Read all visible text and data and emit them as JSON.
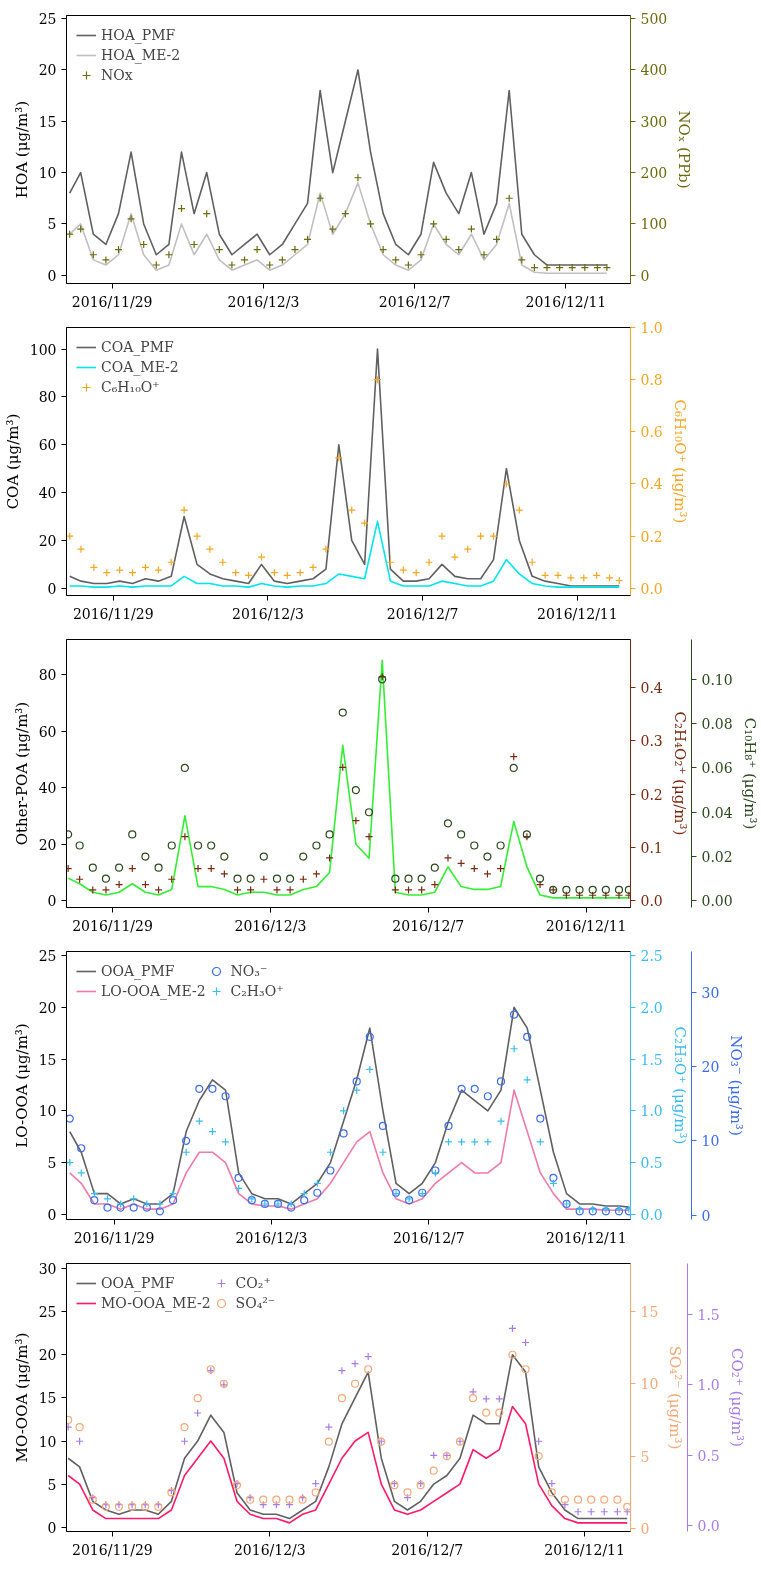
{
  "chart_data": [
    {
      "type": "line",
      "legend": "top left",
      "grid": false,
      "ylabel": "HOA (μg/m³)",
      "y2label": "NOₓ (PPb)",
      "x": [
        "2016-11-27T21:00",
        "2016-11-28T04:00",
        "2016-11-28T12:00",
        "2016-11-28T20:00",
        "2016-11-29T04:00",
        "2016-11-29T12:00",
        "2016-11-29T20:00",
        "2016-11-30T04:00",
        "2016-11-30T12:00",
        "2016-11-30T20:00",
        "2016-12-01T04:00",
        "2016-12-01T12:00",
        "2016-12-01T20:00",
        "2016-12-02T04:00",
        "2016-12-02T12:00",
        "2016-12-02T20:00",
        "2016-12-03T04:00",
        "2016-12-03T12:00",
        "2016-12-03T20:00",
        "2016-12-04T04:00",
        "2016-12-04T12:00",
        "2016-12-04T20:00",
        "2016-12-05T04:00",
        "2016-12-05T12:00",
        "2016-12-05T20:00",
        "2016-12-06T04:00",
        "2016-12-06T12:00",
        "2016-12-06T20:00",
        "2016-12-07T04:00",
        "2016-12-07T12:00",
        "2016-12-07T20:00",
        "2016-12-08T04:00",
        "2016-12-08T12:00",
        "2016-12-08T20:00",
        "2016-12-09T04:00",
        "2016-12-09T12:00",
        "2016-12-09T20:00",
        "2016-12-10T04:00",
        "2016-12-10T12:00",
        "2016-12-10T20:00",
        "2016-12-11T04:00",
        "2016-12-11T12:00",
        "2016-12-11T20:00",
        "2016-12-12T02:00"
      ],
      "xlim": [
        "2016-11-27T19:00",
        "2016-12-12T17:00"
      ],
      "xticks": [
        {
          "value": "2016-11-29",
          "label": "2016/11/29"
        },
        {
          "value": "2016-12-03",
          "label": "2016/12/3"
        },
        {
          "value": "2016-12-07",
          "label": "2016/12/7"
        },
        {
          "value": "2016-12-11",
          "label": "2016/12/11"
        }
      ],
      "ylim": [
        -0.8,
        25.3
      ],
      "yticks": [
        0,
        5,
        10,
        15,
        20,
        25
      ],
      "y2lim": [
        -16,
        506
      ],
      "y2ticks": [
        0,
        100,
        200,
        300,
        400,
        500
      ],
      "series": [
        {
          "name": "HOA_PMF",
          "color": "#606060",
          "values": [
            8,
            10,
            4,
            3,
            6,
            12,
            5,
            2,
            3,
            12,
            6,
            10,
            4,
            2,
            3,
            4,
            2,
            3,
            5,
            7,
            18,
            10,
            15,
            20,
            12,
            6,
            3,
            2,
            4,
            11,
            8,
            6,
            10,
            4,
            7,
            18,
            4,
            2,
            1,
            1,
            1,
            1,
            1,
            1
          ]
        },
        {
          "name": "HOA_ME-2",
          "color": "#c0c0c0",
          "values": [
            4,
            5,
            1.5,
            1,
            2,
            6,
            2,
            0.5,
            1,
            5,
            2,
            4,
            1.5,
            0.5,
            1,
            1.5,
            0.5,
            1,
            2,
            3,
            8,
            4,
            6,
            9,
            5,
            2,
            1,
            0.5,
            1.5,
            5,
            3,
            2,
            4,
            1.5,
            3,
            7,
            1,
            0.3,
            0.2,
            0.2,
            0.2,
            0.2,
            0.2,
            0.2
          ]
        },
        {
          "name": "NOx",
          "color": "#6b6b10",
          "type": "scatter",
          "marker": "cross",
          "axis": "y2",
          "values": [
            80,
            90,
            40,
            30,
            50,
            110,
            60,
            20,
            40,
            130,
            60,
            120,
            50,
            20,
            30,
            50,
            20,
            30,
            50,
            70,
            150,
            90,
            120,
            190,
            100,
            50,
            30,
            20,
            40,
            100,
            70,
            50,
            90,
            40,
            70,
            150,
            30,
            15,
            15,
            15,
            15,
            15,
            15,
            15
          ]
        }
      ]
    },
    {
      "type": "line",
      "legend": "top left",
      "grid": false,
      "ylabel": "COA (μg/m³)",
      "y2label": "C₆H₁₀O⁺ (μg/m³)",
      "x": [
        "2016-11-27T21:00",
        "2016-11-28T04:00",
        "2016-11-28T12:00",
        "2016-11-28T20:00",
        "2016-11-29T04:00",
        "2016-11-29T12:00",
        "2016-11-29T20:00",
        "2016-11-30T04:00",
        "2016-11-30T12:00",
        "2016-11-30T20:00",
        "2016-12-01T04:00",
        "2016-12-01T12:00",
        "2016-12-01T20:00",
        "2016-12-02T04:00",
        "2016-12-02T12:00",
        "2016-12-02T20:00",
        "2016-12-03T04:00",
        "2016-12-03T12:00",
        "2016-12-03T20:00",
        "2016-12-04T04:00",
        "2016-12-04T12:00",
        "2016-12-04T20:00",
        "2016-12-05T04:00",
        "2016-12-05T12:00",
        "2016-12-05T20:00",
        "2016-12-06T04:00",
        "2016-12-06T12:00",
        "2016-12-06T20:00",
        "2016-12-07T04:00",
        "2016-12-07T12:00",
        "2016-12-07T20:00",
        "2016-12-08T04:00",
        "2016-12-08T12:00",
        "2016-12-08T20:00",
        "2016-12-09T04:00",
        "2016-12-09T12:00",
        "2016-12-09T20:00",
        "2016-12-10T04:00",
        "2016-12-10T12:00",
        "2016-12-10T20:00",
        "2016-12-11T04:00",
        "2016-12-11T12:00",
        "2016-12-11T20:00",
        "2016-12-12T02:00"
      ],
      "xlim": [
        "2016-11-27T19:00",
        "2016-12-12T09:00"
      ],
      "xticks": [
        {
          "value": "2016-11-29",
          "label": "2016/11/29"
        },
        {
          "value": "2016-12-03",
          "label": "2016/12/3"
        },
        {
          "value": "2016-12-07",
          "label": "2016/12/7"
        },
        {
          "value": "2016-12-11",
          "label": "2016/12/11"
        }
      ],
      "ylim": [
        -3,
        109
      ],
      "yticks": [
        0,
        20,
        40,
        60,
        80,
        100
      ],
      "y2lim": [
        -0.0275,
        1.0
      ],
      "y2ticks": [
        {
          "value": 0,
          "label": "0.0"
        },
        0.2,
        0.4,
        0.6,
        0.8,
        {
          "value": 1,
          "label": "1.0"
        }
      ],
      "series": [
        {
          "name": "COA_PMF",
          "color": "#606060",
          "values": [
            5,
            3,
            2,
            2,
            3,
            2,
            4,
            3,
            5,
            30,
            10,
            6,
            4,
            3,
            2,
            10,
            3,
            2,
            3,
            4,
            8,
            60,
            20,
            10,
            100,
            8,
            3,
            3,
            4,
            10,
            5,
            4,
            4,
            12,
            50,
            20,
            5,
            3,
            2,
            1,
            1,
            1,
            1,
            1
          ]
        },
        {
          "name": "COA_ME-2",
          "color": "#00e5ee",
          "values": [
            1,
            1,
            0.5,
            0.5,
            1,
            0.5,
            1,
            1,
            1,
            5,
            2,
            2,
            1,
            1,
            0.5,
            2,
            1,
            0.5,
            1,
            1,
            2,
            6,
            5,
            4,
            28,
            3,
            1,
            1,
            1,
            3,
            2,
            1,
            1,
            3,
            12,
            6,
            2,
            1,
            0.5,
            0.5,
            0.5,
            0.5,
            0.5,
            0.5
          ]
        },
        {
          "name": "C₆H₁₀O⁺",
          "color": "#f5a623",
          "type": "scatter",
          "marker": "cross",
          "axis": "y2",
          "values": [
            0.2,
            0.15,
            0.08,
            0.06,
            0.07,
            0.06,
            0.08,
            0.07,
            0.1,
            0.3,
            0.2,
            0.15,
            0.1,
            0.06,
            0.05,
            0.12,
            0.06,
            0.05,
            0.06,
            0.08,
            0.15,
            0.5,
            0.3,
            0.25,
            0.8,
            0.1,
            0.07,
            0.06,
            0.1,
            0.2,
            0.12,
            0.15,
            0.2,
            0.2,
            0.4,
            0.3,
            0.1,
            0.05,
            0.05,
            0.04,
            0.04,
            0.05,
            0.04,
            0.03
          ]
        }
      ]
    },
    {
      "type": "line",
      "grid": false,
      "ylabel": "Other-POA (μg/m³)",
      "y2label": "C₂H₄O₂⁺ (μg/m³)",
      "y3label": "C₁₀H₈⁺ (μg/m³)",
      "x": [
        "2016-11-27T21:00",
        "2016-11-28T04:00",
        "2016-11-28T12:00",
        "2016-11-28T20:00",
        "2016-11-29T04:00",
        "2016-11-29T12:00",
        "2016-11-29T20:00",
        "2016-11-30T04:00",
        "2016-11-30T12:00",
        "2016-11-30T20:00",
        "2016-12-01T04:00",
        "2016-12-01T12:00",
        "2016-12-01T20:00",
        "2016-12-02T04:00",
        "2016-12-02T12:00",
        "2016-12-02T20:00",
        "2016-12-03T04:00",
        "2016-12-03T12:00",
        "2016-12-03T20:00",
        "2016-12-04T04:00",
        "2016-12-04T12:00",
        "2016-12-04T20:00",
        "2016-12-05T04:00",
        "2016-12-05T12:00",
        "2016-12-05T20:00",
        "2016-12-06T04:00",
        "2016-12-06T12:00",
        "2016-12-06T20:00",
        "2016-12-07T04:00",
        "2016-12-07T12:00",
        "2016-12-07T20:00",
        "2016-12-08T04:00",
        "2016-12-08T12:00",
        "2016-12-08T20:00",
        "2016-12-09T04:00",
        "2016-12-09T12:00",
        "2016-12-09T20:00",
        "2016-12-10T04:00",
        "2016-12-10T12:00",
        "2016-12-10T20:00",
        "2016-12-11T04:00",
        "2016-12-11T12:00",
        "2016-12-11T20:00",
        "2016-12-12T02:00"
      ],
      "xlim": [
        "2016-11-27T20:00",
        "2016-12-12T03:00"
      ],
      "xticks": [
        {
          "value": "2016-11-29",
          "label": "2016/11/29"
        },
        {
          "value": "2016-12-03",
          "label": "2016/12/3"
        },
        {
          "value": "2016-12-07",
          "label": "2016/12/7"
        },
        {
          "value": "2016-12-11",
          "label": "2016/12/11"
        }
      ],
      "ylim": [
        -2.4,
        92.4
      ],
      "yticks": [
        0,
        20,
        40,
        60,
        80
      ],
      "y2lim": [
        -0.013,
        0.49
      ],
      "y2ticks": [
        {
          "value": 0,
          "label": "0.0"
        },
        0.1,
        0.2,
        0.3,
        0.4
      ],
      "y3lim": [
        -0.003,
        0.118
      ],
      "y3ticks": [
        {
          "value": 0,
          "label": "0.00"
        },
        0.02,
        0.04,
        0.06,
        0.08,
        {
          "value": 0.1,
          "label": "0.10"
        }
      ],
      "series": [
        {
          "color": "#33ee33",
          "values": [
            8,
            6,
            3,
            2,
            3,
            6,
            3,
            2,
            4,
            30,
            5,
            5,
            4,
            2,
            3,
            3,
            2,
            2,
            4,
            5,
            10,
            55,
            20,
            15,
            85,
            3,
            2,
            2,
            3,
            12,
            5,
            4,
            4,
            5,
            28,
            12,
            2,
            1,
            1,
            1,
            1,
            1,
            1,
            1
          ]
        },
        {
          "color": "#7a2a10",
          "type": "scatter",
          "marker": "cross",
          "axis": "y2",
          "values": [
            0.06,
            0.04,
            0.02,
            0.02,
            0.03,
            0.06,
            0.03,
            0.02,
            0.04,
            0.12,
            0.06,
            0.06,
            0.05,
            0.02,
            0.02,
            0.04,
            0.02,
            0.02,
            0.04,
            0.05,
            0.08,
            0.25,
            0.15,
            0.12,
            0.42,
            0.02,
            0.02,
            0.02,
            0.03,
            0.08,
            0.07,
            0.06,
            0.05,
            0.06,
            0.27,
            0.12,
            0.03,
            0.02,
            0.01,
            0.01,
            0.01,
            0.01,
            0.01,
            0.01
          ]
        },
        {
          "color": "#2d4a1e",
          "type": "scatter",
          "marker": "circle",
          "axis": "y3",
          "values": [
            0.03,
            0.025,
            0.015,
            0.01,
            0.015,
            0.03,
            0.02,
            0.015,
            0.025,
            0.06,
            0.025,
            0.025,
            0.02,
            0.01,
            0.01,
            0.02,
            0.01,
            0.01,
            0.02,
            0.025,
            0.03,
            0.085,
            0.05,
            0.04,
            0.1,
            0.01,
            0.01,
            0.01,
            0.015,
            0.035,
            0.03,
            0.025,
            0.02,
            0.025,
            0.06,
            0.03,
            0.01,
            0.005,
            0.005,
            0.005,
            0.005,
            0.005,
            0.005,
            0.005
          ]
        }
      ]
    },
    {
      "type": "line",
      "legend": "top left",
      "grid": false,
      "ylabel": "LO-OOA (μg/m³)",
      "y2label": "C₂H₃O⁺ (μg/m³)",
      "y3label": "NO₃⁻ (μg/m³)",
      "x": [
        "2016-11-27T21:00",
        "2016-11-28T04:00",
        "2016-11-28T12:00",
        "2016-11-28T20:00",
        "2016-11-29T04:00",
        "2016-11-29T12:00",
        "2016-11-29T20:00",
        "2016-11-30T04:00",
        "2016-11-30T12:00",
        "2016-11-30T20:00",
        "2016-12-01T04:00",
        "2016-12-01T12:00",
        "2016-12-01T20:00",
        "2016-12-02T04:00",
        "2016-12-02T12:00",
        "2016-12-02T20:00",
        "2016-12-03T04:00",
        "2016-12-03T12:00",
        "2016-12-03T20:00",
        "2016-12-04T04:00",
        "2016-12-04T12:00",
        "2016-12-04T20:00",
        "2016-12-05T04:00",
        "2016-12-05T12:00",
        "2016-12-05T20:00",
        "2016-12-06T04:00",
        "2016-12-06T12:00",
        "2016-12-06T20:00",
        "2016-12-07T04:00",
        "2016-12-07T12:00",
        "2016-12-07T20:00",
        "2016-12-08T04:00",
        "2016-12-08T12:00",
        "2016-12-08T20:00",
        "2016-12-09T04:00",
        "2016-12-09T12:00",
        "2016-12-09T20:00",
        "2016-12-10T04:00",
        "2016-12-10T12:00",
        "2016-12-10T20:00",
        "2016-12-11T04:00",
        "2016-12-11T12:00",
        "2016-12-11T20:00",
        "2016-12-12T02:00"
      ],
      "xlim": [
        "2016-11-27T19:00",
        "2016-12-12T03:00"
      ],
      "xticks": [
        {
          "value": "2016-11-29",
          "label": "2016/11/29"
        },
        {
          "value": "2016-12-03",
          "label": "2016/12/3"
        },
        {
          "value": "2016-12-07",
          "label": "2016/12/7"
        },
        {
          "value": "2016-12-11",
          "label": "2016/12/11"
        }
      ],
      "ylim": [
        -0.5,
        25.4
      ],
      "yticks": [
        0,
        5,
        10,
        15,
        20,
        25
      ],
      "y2lim": [
        -0.05,
        2.54
      ],
      "y2ticks": [
        {
          "value": 0,
          "label": "0.0"
        },
        0.5,
        {
          "value": 1,
          "label": "1.0"
        },
        1.5,
        {
          "value": 2,
          "label": "2.0"
        },
        2.5
      ],
      "y3lim": [
        -0.6,
        35.5
      ],
      "y3ticks": [
        0,
        10,
        20,
        30
      ],
      "series": [
        {
          "name": "OOA_PMF",
          "color": "#606060",
          "values": [
            8,
            6,
            2,
            2,
            1,
            1.5,
            1,
            1,
            2,
            8,
            11,
            13,
            12,
            4,
            2,
            1.5,
            1.5,
            1,
            2,
            3,
            5,
            9,
            13,
            18,
            10,
            3,
            2,
            3,
            5,
            9,
            12,
            11,
            10,
            12,
            20,
            18,
            12,
            6,
            2,
            1,
            1,
            0.8,
            0.8,
            0.7
          ]
        },
        {
          "name": "LO-OOA_ME-2",
          "color": "#f07aa8",
          "values": [
            4,
            3,
            1,
            1,
            0.5,
            1,
            0.5,
            0.5,
            1,
            4,
            6,
            6,
            5,
            2,
            1,
            0.8,
            0.8,
            0.5,
            1,
            1.5,
            3,
            5,
            7,
            8,
            4,
            1.5,
            1,
            1.5,
            3,
            4,
            5,
            4,
            4,
            5,
            12,
            8,
            4,
            2,
            0.5,
            0.5,
            0.5,
            0.4,
            0.4,
            0.4
          ]
        },
        {
          "name": "NO₃⁻",
          "color": "#3b6cf0",
          "type": "scatter",
          "marker": "circle",
          "axis": "y3",
          "values": [
            13,
            9,
            2,
            1,
            1,
            1,
            1,
            0.5,
            2,
            10,
            17,
            17,
            16,
            5,
            2,
            1.5,
            1.5,
            1,
            2,
            3,
            6,
            11,
            18,
            24,
            12,
            3,
            2,
            3,
            6,
            12,
            17,
            17,
            16,
            18,
            27,
            24,
            13,
            5,
            1.5,
            0.5,
            0.5,
            0.5,
            0.5,
            0.5
          ]
        },
        {
          "name": "C₂H₃O⁺",
          "color": "#3bbcf0",
          "type": "scatter",
          "marker": "cross",
          "axis": "y2",
          "values": [
            0.5,
            0.4,
            0.2,
            0.15,
            0.1,
            0.15,
            0.1,
            0.1,
            0.2,
            0.6,
            0.9,
            0.8,
            0.7,
            0.25,
            0.15,
            0.1,
            0.1,
            0.1,
            0.2,
            0.3,
            0.6,
            1.0,
            1.2,
            1.4,
            0.6,
            0.2,
            0.15,
            0.2,
            0.4,
            0.7,
            0.7,
            0.7,
            0.7,
            0.9,
            1.6,
            1.3,
            0.7,
            0.3,
            0.1,
            0.05,
            0.05,
            0.05,
            0.05,
            0.05
          ]
        }
      ]
    },
    {
      "type": "line",
      "legend": "top left",
      "grid": false,
      "ylabel": "MO-OOA (μg/m³)",
      "y2label": "SO₄²⁻ (μg/m³)",
      "y3label": "CO₂⁺ (μg/m³)",
      "x": [
        "2016-11-27T21:00",
        "2016-11-28T04:00",
        "2016-11-28T12:00",
        "2016-11-28T20:00",
        "2016-11-29T04:00",
        "2016-11-29T12:00",
        "2016-11-29T20:00",
        "2016-11-30T04:00",
        "2016-11-30T12:00",
        "2016-11-30T20:00",
        "2016-12-01T04:00",
        "2016-12-01T12:00",
        "2016-12-01T20:00",
        "2016-12-02T04:00",
        "2016-12-02T12:00",
        "2016-12-02T20:00",
        "2016-12-03T04:00",
        "2016-12-03T12:00",
        "2016-12-03T20:00",
        "2016-12-04T04:00",
        "2016-12-04T12:00",
        "2016-12-04T20:00",
        "2016-12-05T04:00",
        "2016-12-05T12:00",
        "2016-12-05T20:00",
        "2016-12-06T04:00",
        "2016-12-06T12:00",
        "2016-12-06T20:00",
        "2016-12-07T04:00",
        "2016-12-07T12:00",
        "2016-12-07T20:00",
        "2016-12-08T04:00",
        "2016-12-08T12:00",
        "2016-12-08T20:00",
        "2016-12-09T04:00",
        "2016-12-09T12:00",
        "2016-12-09T20:00",
        "2016-12-10T04:00",
        "2016-12-10T12:00",
        "2016-12-10T20:00",
        "2016-12-11T04:00",
        "2016-12-11T12:00",
        "2016-12-11T20:00",
        "2016-12-12T02:00"
      ],
      "xlim": [
        "2016-11-27T20:00",
        "2016-12-12T04:00"
      ],
      "xticks": [
        {
          "value": "2016-11-29",
          "label": "2016/11/29"
        },
        {
          "value": "2016-12-03",
          "label": "2016/12/3"
        },
        {
          "value": "2016-12-07",
          "label": "2016/12/7"
        },
        {
          "value": "2016-12-11",
          "label": "2016/12/11"
        }
      ],
      "ylim": [
        -0.5,
        30.6
      ],
      "yticks": [
        0,
        5,
        10,
        15,
        20,
        25,
        30
      ],
      "y2lim": [
        -0.2,
        18.3
      ],
      "y2ticks": [
        0,
        5,
        10,
        15
      ],
      "y3lim": [
        -0.04,
        1.86
      ],
      "y3ticks": [
        {
          "value": 0,
          "label": "0.0"
        },
        0.5,
        {
          "value": 1,
          "label": "1.0"
        },
        1.5
      ],
      "series": [
        {
          "name": "OOA_PMF",
          "color": "#606060",
          "values": [
            8,
            7,
            3,
            2,
            1.5,
            2,
            2,
            1.5,
            3,
            8,
            10,
            13,
            11,
            4,
            2,
            1.5,
            1.5,
            1,
            2,
            3,
            7,
            12,
            15,
            18,
            8,
            3,
            2,
            3,
            5,
            6,
            8,
            13,
            12,
            12,
            20,
            18,
            7,
            4,
            2,
            1,
            1,
            1,
            1,
            1
          ]
        },
        {
          "name": "MO-OOA_ME-2",
          "color": "#ff1a66",
          "values": [
            6,
            5,
            2,
            1,
            1,
            1,
            1,
            1,
            2,
            6,
            8,
            10,
            8,
            3,
            1.5,
            1,
            1,
            0.5,
            1.5,
            2,
            5,
            8,
            10,
            11,
            5,
            2,
            1.5,
            2,
            3,
            4,
            5,
            9,
            8,
            9,
            14,
            12,
            5,
            2.5,
            1,
            0.5,
            0.5,
            0.5,
            0.5,
            0.5
          ]
        },
        {
          "name": "CO₂⁺",
          "color": "#a87de8",
          "type": "scatter",
          "marker": "cross",
          "axis": "y3",
          "values": [
            0.7,
            0.6,
            0.2,
            0.15,
            0.15,
            0.15,
            0.15,
            0.15,
            0.25,
            0.6,
            0.8,
            1.1,
            1.0,
            0.3,
            0.2,
            0.15,
            0.15,
            0.15,
            0.2,
            0.3,
            0.7,
            1.1,
            1.15,
            1.2,
            0.6,
            0.3,
            0.2,
            0.3,
            0.5,
            0.5,
            0.6,
            0.95,
            0.9,
            0.9,
            1.4,
            1.3,
            0.6,
            0.3,
            0.15,
            0.1,
            0.1,
            0.1,
            0.1,
            0.1
          ]
        },
        {
          "name": "SO₄²⁻",
          "color": "#f5a878",
          "type": "scatter",
          "marker": "circle",
          "axis": "y2",
          "values": [
            7.5,
            7,
            2,
            1.5,
            1.5,
            1.5,
            1.5,
            1.5,
            2.5,
            7,
            9,
            11,
            10,
            3,
            2,
            2,
            2,
            2,
            2,
            2.5,
            6,
            9,
            10,
            11,
            6,
            3,
            2.5,
            3,
            4,
            5,
            6,
            9,
            8,
            8,
            12,
            11,
            5,
            2.5,
            2,
            2,
            2,
            2,
            2,
            1.5
          ]
        }
      ]
    }
  ]
}
